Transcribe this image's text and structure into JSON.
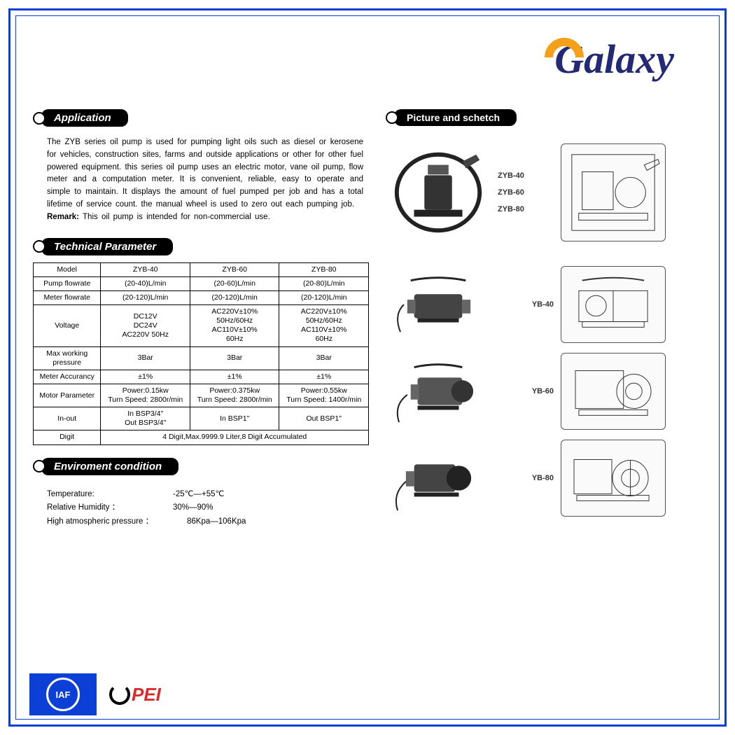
{
  "logo": {
    "text": "Galaxy",
    "text_color": "#232974",
    "arc_color": "#f3a01b"
  },
  "sections": {
    "application": {
      "title": "Application",
      "body": "The ZYB series oil pump is used for pumping light oils such as diesel or kerosene for vehicles, construction sites, farms and outside applications or other for other fuel powered equipment. this series oil pump uses an electric motor, vane oil pump, flow meter and a computation meter. It is convenient, reliable, easy to operate and simple to maintain. It displays the amount of fuel pumped per job and has a total lifetime of service count. the manual wheel is used to zero out each pumping job.",
      "remark_label": "Remark:",
      "remark_text": " This oil pump is intended for non-commercial use."
    },
    "technical": {
      "title": "Technical Parameter",
      "columns": [
        "Model",
        "ZYB-40",
        "ZYB-60",
        "ZYB-80"
      ],
      "rows": [
        {
          "label": "Pump flowrate",
          "cells": [
            "(20-40)L/min",
            "(20-60)L/min",
            "(20-80)L/min"
          ]
        },
        {
          "label": "Meter flowrate",
          "cells": [
            "(20-120)L/min",
            "(20-120)L/min",
            "(20-120)L/min"
          ]
        },
        {
          "label": "Voltage",
          "cells": [
            "DC12V\nDC24V\nAC220V 50Hz",
            "AC220V±10%\n50Hz/60Hz\nAC110V±10%\n60Hz",
            "AC220V±10%\n50Hz/60Hz\nAC110V±10%\n60Hz"
          ]
        },
        {
          "label": "Max working\npressure",
          "cells": [
            "3Bar",
            "3Bar",
            "3Bar"
          ]
        },
        {
          "label": "Meter Accurancy",
          "cells": [
            "±1%",
            "±1%",
            "±1%"
          ]
        },
        {
          "label": "Motor Parameter",
          "cells": [
            "Power:0.15kw\nTurn Speed: 2800r/min",
            "Power:0.375kw\nTurn Speed: 2800r/min",
            "Power:0.55kw\nTurn Speed: 1400r/min"
          ]
        },
        {
          "label": "In-out",
          "cells": [
            "In BSP3/4\"\nOut BSP3/4\"",
            "In BSP1\"",
            "Out BSP1\""
          ]
        }
      ],
      "digit_label": "Digit",
      "digit_value": "4 Digit,Max.9999.9 Liter,8 Digit Accumulated"
    },
    "environment": {
      "title": "Enviroment condition",
      "items": [
        {
          "label": "Temperature:",
          "value": "-25℃—+55℃"
        },
        {
          "label": "Relative Humidity ：",
          "value": "30%—90%"
        },
        {
          "label": "High atmospheric pressure ：",
          "value": "86Kpa—106Kpa"
        }
      ]
    },
    "picture": {
      "title": "Picture and schetch",
      "group1": [
        "ZYB-40",
        "ZYB-60",
        "ZYB-80"
      ],
      "items": [
        "YB-40",
        "YB-60",
        "YB-80"
      ]
    }
  },
  "certs": {
    "iaf": "IAF",
    "pei": "PEI"
  },
  "colors": {
    "border": "#0b3fd6",
    "pill_bg": "#000000",
    "pill_fg": "#ffffff",
    "text": "#000000",
    "pei_red": "#d92d2d"
  }
}
